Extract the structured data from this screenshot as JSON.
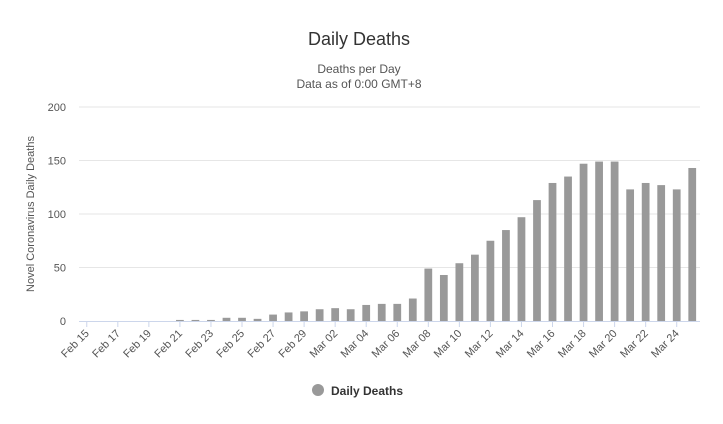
{
  "chart_data": {
    "type": "bar",
    "title": "Daily Deaths",
    "subtitle_lines": [
      "Deaths per Day",
      "Data as of 0:00 GMT+8"
    ],
    "ylabel": "Novel Coronavirus Daily Deaths",
    "xlabel": "",
    "ylim": [
      0,
      200
    ],
    "yticks": [
      0,
      50,
      100,
      150,
      200
    ],
    "grid": true,
    "legend_position": "bottom-center",
    "categories": [
      "Feb 15",
      "Feb 16",
      "Feb 17",
      "Feb 18",
      "Feb 19",
      "Feb 20",
      "Feb 21",
      "Feb 22",
      "Feb 23",
      "Feb 24",
      "Feb 25",
      "Feb 26",
      "Feb 27",
      "Feb 28",
      "Feb 29",
      "Mar 01",
      "Mar 02",
      "Mar 03",
      "Mar 04",
      "Mar 05",
      "Mar 06",
      "Mar 07",
      "Mar 08",
      "Mar 09",
      "Mar 10",
      "Mar 11",
      "Mar 12",
      "Mar 13",
      "Mar 14",
      "Mar 15",
      "Mar 16",
      "Mar 17",
      "Mar 18",
      "Mar 19",
      "Mar 20",
      "Mar 21",
      "Mar 22",
      "Mar 23",
      "Mar 24",
      "Mar 25"
    ],
    "tick_labels": [
      "Feb 15",
      "Feb 17",
      "Feb 19",
      "Feb 21",
      "Feb 23",
      "Feb 25",
      "Feb 27",
      "Feb 29",
      "Mar 02",
      "Mar 04",
      "Mar 06",
      "Mar 08",
      "Mar 10",
      "Mar 12",
      "Mar 14",
      "Mar 16",
      "Mar 18",
      "Mar 20",
      "Mar 22",
      "Mar 24"
    ],
    "series": [
      {
        "name": "Daily Deaths",
        "color": "#999999",
        "values": [
          0,
          0,
          0,
          0,
          0,
          0,
          1,
          1,
          1,
          3,
          3,
          2,
          6,
          8,
          9,
          11,
          12,
          11,
          15,
          16,
          16,
          21,
          49,
          43,
          54,
          62,
          75,
          85,
          97,
          113,
          129,
          135,
          147,
          149,
          149,
          123,
          129,
          127,
          123,
          143
        ]
      }
    ]
  }
}
